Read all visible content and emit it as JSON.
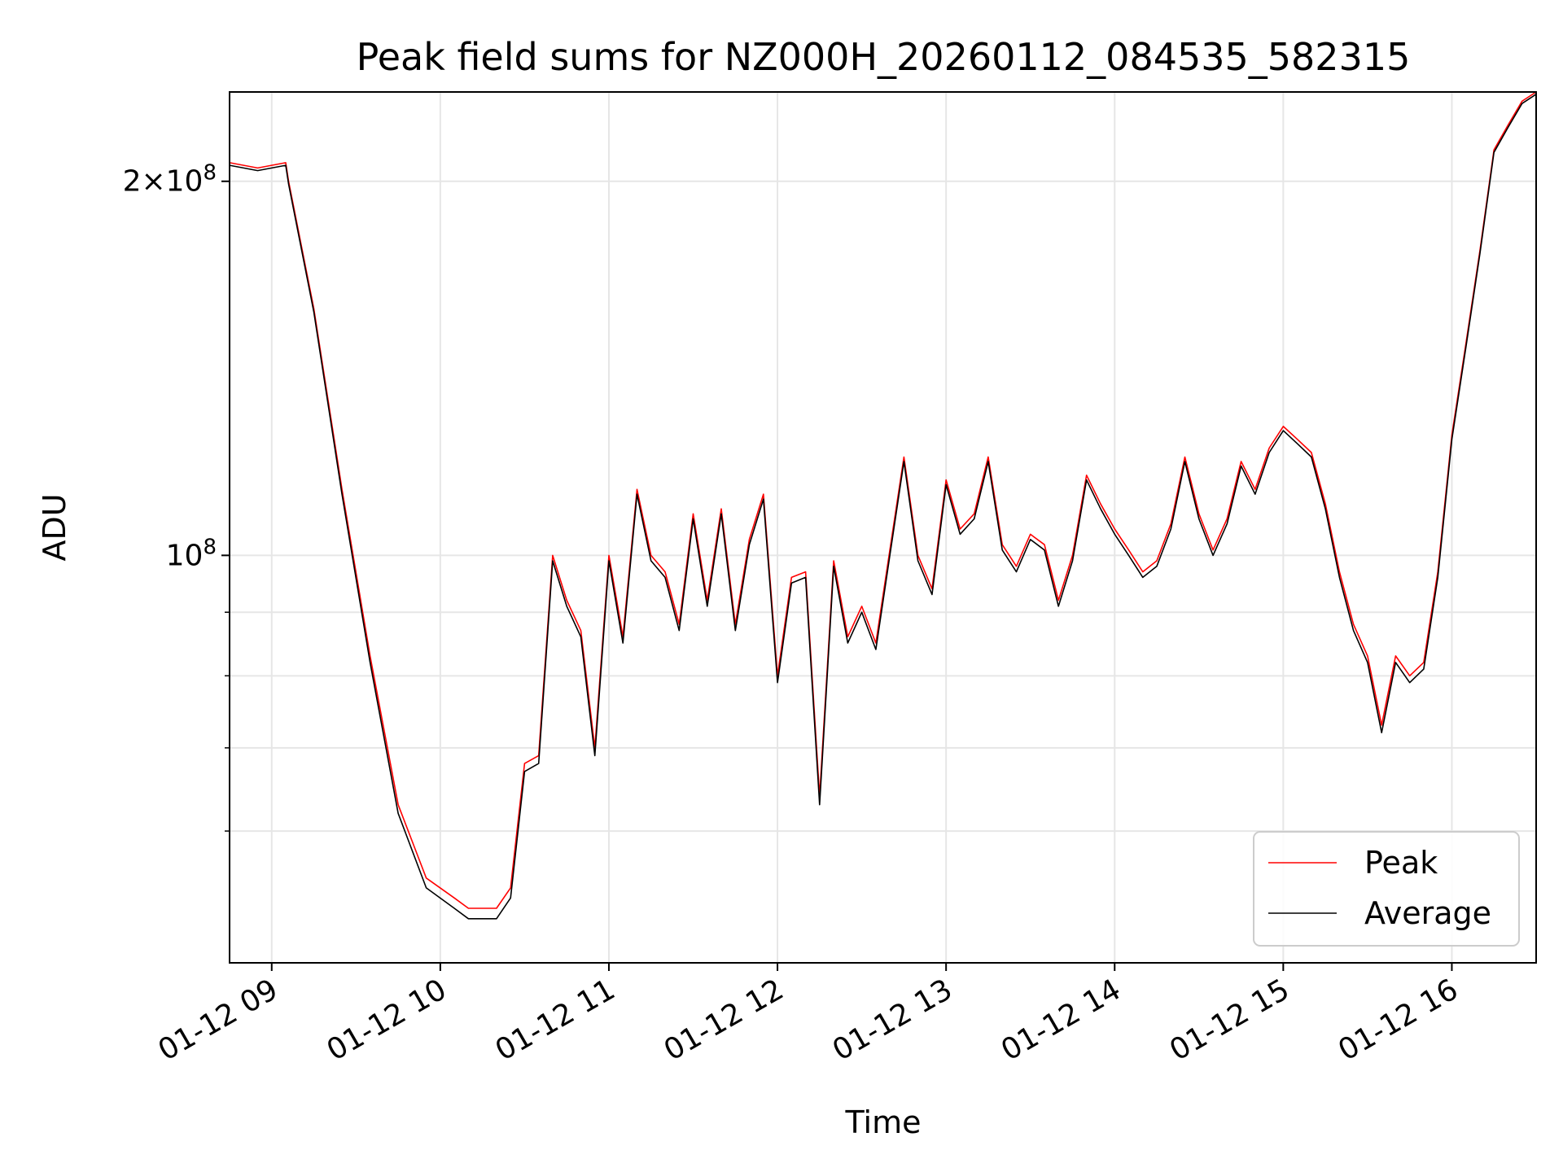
{
  "chart_data": {
    "type": "line",
    "title": "Peak field sums for NZ000H_20260112_084535_582315",
    "xlabel": "Time",
    "ylabel": "ADU",
    "x_range": [
      "2026-01-12 08:45",
      "2026-01-12 16:30"
    ],
    "y_scale": "log",
    "ylim": [
      47000000,
      236000000
    ],
    "x_ticks": [
      "01-12 09",
      "01-12 10",
      "01-12 11",
      "01-12 12",
      "01-12 13",
      "01-12 14",
      "01-12 15",
      "01-12 16"
    ],
    "y_ticks": [
      {
        "value": 100000000,
        "label": "10^8"
      },
      {
        "value": 200000000,
        "label": "2×10^8"
      }
    ],
    "y_minor_ticks": [
      60000000,
      70000000,
      80000000,
      90000000
    ],
    "grid": true,
    "legend": {
      "placement": "bottom-right",
      "entries": [
        "Peak",
        "Average"
      ]
    },
    "colors": {
      "Peak": "#ff0000",
      "Average": "#000000"
    },
    "x": [
      "08:45",
      "08:55",
      "09:05",
      "09:06",
      "09:15",
      "09:25",
      "09:35",
      "09:45",
      "09:55",
      "10:05",
      "10:10",
      "10:15",
      "10:20",
      "10:25",
      "10:30",
      "10:35",
      "10:40",
      "10:45",
      "10:50",
      "10:55",
      "11:00",
      "11:05",
      "11:10",
      "11:15",
      "11:20",
      "11:25",
      "11:30",
      "11:35",
      "11:40",
      "11:45",
      "11:50",
      "11:55",
      "12:00",
      "12:05",
      "12:10",
      "12:15",
      "12:20",
      "12:25",
      "12:30",
      "12:35",
      "12:40",
      "12:45",
      "12:50",
      "12:55",
      "13:00",
      "13:05",
      "13:10",
      "13:15",
      "13:20",
      "13:25",
      "13:30",
      "13:35",
      "13:40",
      "13:45",
      "13:50",
      "13:55",
      "14:00",
      "14:05",
      "14:10",
      "14:15",
      "14:20",
      "14:25",
      "14:30",
      "14:35",
      "14:40",
      "14:45",
      "14:50",
      "14:55",
      "15:00",
      "15:05",
      "15:10",
      "15:15",
      "15:20",
      "15:25",
      "15:30",
      "15:35",
      "15:40",
      "15:45",
      "15:50",
      "15:55",
      "16:00",
      "16:05",
      "16:10",
      "16:15",
      "16:20",
      "16:25",
      "16:30"
    ],
    "series": [
      {
        "name": "Peak",
        "values": [
          207000000,
          205000000,
          207000000,
          200000000,
          158000000,
          113000000,
          83000000,
          63000000,
          55000000,
          53000000,
          52000000,
          52000000,
          52000000,
          54000000,
          68000000,
          69000000,
          100000000,
          92000000,
          87000000,
          70000000,
          100000000,
          86000000,
          113000000,
          100000000,
          97000000,
          88000000,
          108000000,
          92000000,
          109000000,
          88000000,
          103000000,
          112000000,
          80000000,
          96000000,
          97000000,
          64000000,
          99000000,
          86000000,
          91000000,
          85000000,
          101000000,
          120000000,
          100000000,
          94000000,
          115000000,
          105000000,
          108000000,
          120000000,
          102000000,
          98000000,
          104000000,
          102000000,
          92000000,
          100000000,
          116000000,
          110000000,
          105000000,
          101000000,
          97000000,
          99000000,
          106000000,
          120000000,
          108000000,
          101000000,
          107000000,
          119000000,
          113000000,
          122000000,
          127000000,
          124000000,
          121000000,
          110000000,
          97000000,
          88000000,
          83000000,
          73000000,
          83000000,
          80000000,
          82000000,
          97000000,
          125000000,
          148000000,
          176000000,
          212000000,
          222000000,
          232000000,
          236000000
        ]
      },
      {
        "name": "Average",
        "values": [
          206000000,
          204000000,
          206000000,
          199000000,
          157000000,
          112000000,
          82000000,
          62000000,
          54000000,
          52000000,
          51000000,
          51000000,
          51000000,
          53000000,
          67000000,
          68000000,
          99000000,
          91000000,
          86000000,
          69000000,
          99000000,
          85000000,
          112000000,
          99000000,
          96000000,
          87000000,
          107000000,
          91000000,
          108000000,
          87000000,
          102000000,
          111000000,
          79000000,
          95000000,
          96000000,
          63000000,
          98000000,
          85000000,
          90000000,
          84000000,
          100000000,
          119000000,
          99000000,
          93000000,
          114000000,
          104000000,
          107000000,
          119000000,
          101000000,
          97000000,
          103000000,
          101000000,
          91000000,
          99000000,
          115000000,
          109000000,
          104000000,
          100000000,
          96000000,
          98000000,
          105000000,
          119000000,
          107000000,
          100000000,
          106000000,
          118000000,
          112000000,
          121000000,
          126000000,
          123000000,
          120000000,
          109000000,
          96000000,
          87000000,
          82000000,
          72000000,
          82000000,
          79000000,
          81000000,
          96000000,
          124000000,
          147000000,
          175000000,
          211000000,
          221000000,
          231000000,
          235000000
        ]
      }
    ]
  }
}
